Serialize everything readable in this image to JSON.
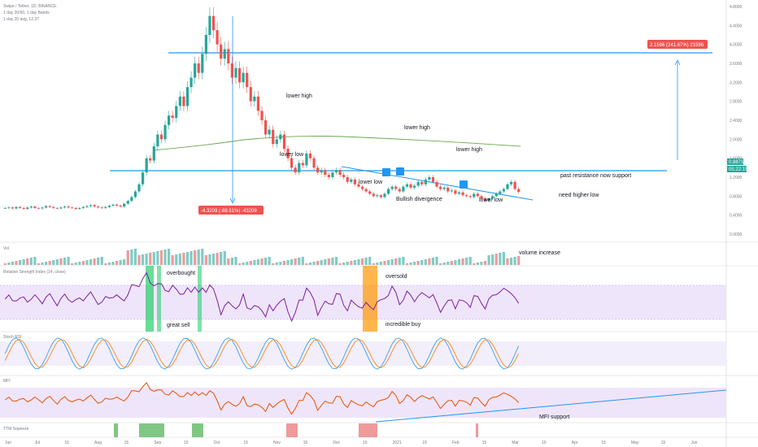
{
  "header": {
    "symbol_line": "Swipe / Tether, 1D, BINANCE",
    "ma_line": "1 day 20/60, 1 day Bands",
    "sub_line": "1 day 20 avg, 12.37"
  },
  "colors": {
    "up": "#26a69a",
    "down": "#ef5350",
    "line_blue": "#2196f3",
    "ma_green": "#6aa84f",
    "rsi_purple": "#7b1fa2",
    "mfi_orange": "#e65100",
    "stoch_blue": "#2196f3",
    "stoch_orange": "#f57c00",
    "band_fill": "#efe5fb",
    "green_hl": "#00c853",
    "orange_hl": "#ff9800"
  },
  "annotations": {
    "lower_high_1": "lower high",
    "lower_low_1": "lower low",
    "lower_high_2": "lower high",
    "lower_high_3": "lower high",
    "lower_low_2": "lower low",
    "lower_low_3": "lower low",
    "bullish_divergence": "Bullish divergence",
    "past_resistance": "past resistance now support",
    "need_higher_low": "need higher low",
    "volume_increase": "volume increase",
    "overbought": "overbought",
    "great_sell": "great sell",
    "oversold": "oversold",
    "incredible_buy": "incredible buy",
    "mfi_support": "MFI support"
  },
  "measure_up": "2.1596 (241.67%) 21596",
  "measure_down": "-4.3209 (-88.51%) -43209",
  "price_tags": {
    "last": "0.8871",
    "timer": "05:22:15"
  },
  "price_axis": [
    "4.8000",
    "4.4000",
    "4.0000",
    "3.6000",
    "3.2000",
    "2.8000",
    "2.4000",
    "2.0000",
    "1.6000",
    "1.2000",
    "0.8000",
    "0.4000",
    "0.0000"
  ],
  "time_axis": [
    "Jun",
    "Jul",
    "15",
    "Aug",
    "15",
    "Sep",
    "15",
    "Oct",
    "15",
    "Nov",
    "15",
    "Dec",
    "15",
    "2021",
    "15",
    "Feb",
    "15",
    "Mar",
    "15",
    "Apr",
    "15",
    "May",
    "15",
    "Jun"
  ],
  "pane_labels": {
    "volume": "Vol",
    "rsi": "Relative Strength Index (14, close)",
    "stoch": "Stoch RSI",
    "mfi": "MFI",
    "ttm": "TTM Squeeze"
  },
  "chart_data": {
    "type": "line",
    "title": "Swipe / Tether, 1D, BINANCE",
    "candles_close_note": "",
    "close": [
      0.55,
      0.56,
      0.54,
      0.57,
      0.55,
      0.53,
      0.56,
      0.58,
      0.55,
      0.54,
      0.56,
      0.59,
      0.57,
      0.55,
      0.54,
      0.56,
      0.58,
      0.56,
      0.55,
      0.53,
      0.55,
      0.57,
      0.59,
      0.61,
      0.58,
      0.56,
      0.55,
      0.57,
      0.6,
      0.62,
      0.6,
      0.58,
      0.64,
      0.7,
      0.78,
      0.9,
      1.05,
      1.3,
      1.6,
      1.55,
      1.85,
      2.1,
      2.0,
      2.3,
      2.5,
      2.45,
      2.7,
      2.9,
      2.7,
      3.1,
      3.3,
      3.6,
      3.4,
      3.8,
      4.2,
      4.6,
      4.3,
      4.0,
      3.7,
      3.9,
      3.6,
      3.3,
      3.5,
      3.2,
      3.4,
      3.1,
      2.8,
      2.9,
      2.6,
      2.4,
      2.1,
      2.2,
      1.9,
      2.0,
      2.1,
      1.8,
      1.6,
      1.4,
      1.3,
      1.5,
      1.45,
      1.7,
      1.6,
      1.4,
      1.3,
      1.35,
      1.25,
      1.2,
      1.3,
      1.35,
      1.25,
      1.2,
      1.1,
      1.15,
      1.05,
      1.0,
      0.95,
      0.9,
      0.85,
      0.8,
      0.82,
      0.78,
      0.85,
      0.95,
      1.0,
      0.95,
      0.9,
      1.0,
      1.05,
      0.98,
      1.02,
      1.1,
      1.05,
      1.15,
      1.2,
      1.1,
      1.0,
      0.95,
      0.98,
      0.9,
      0.92,
      0.85,
      0.88,
      0.82,
      0.8,
      0.78,
      0.85,
      0.8,
      0.75,
      0.7,
      0.75,
      0.8,
      0.85,
      0.9,
      0.95,
      1.05,
      1.1,
      0.95,
      0.89
    ],
    "ylim": [
      0.0,
      4.8
    ],
    "ma_note": ""
  }
}
